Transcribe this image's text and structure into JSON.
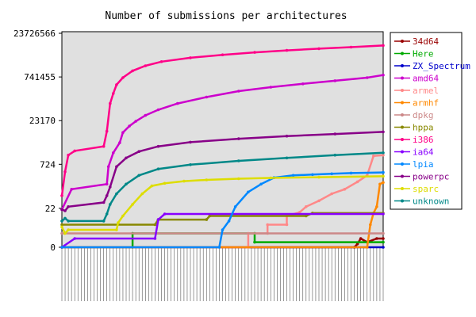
{
  "chart_data": {
    "type": "line",
    "title": "Number of submissions per architectures",
    "xlabel": "",
    "ylabel": "",
    "yscale": "log",
    "grid": false,
    "legend_position": "right",
    "y_ticks": [
      "0",
      "22",
      "724",
      "23170",
      "741455",
      "23726566"
    ],
    "x_range": [
      0,
      100
    ],
    "series": [
      {
        "name": "34d64",
        "color": "#990000",
        "x": [
          0,
          91,
          92,
          93,
          95,
          98,
          100
        ],
        "y": [
          1,
          1,
          1.3,
          2.0,
          1.5,
          2,
          2
        ]
      },
      {
        "name": "Here",
        "color": "#00aa00",
        "x": [
          0,
          22,
          22,
          60,
          60,
          100
        ],
        "y": [
          1,
          1,
          3,
          3,
          1.5,
          1.5
        ]
      },
      {
        "name": "ZX_Spectrum",
        "color": "#0000cc",
        "x": [
          0,
          100
        ],
        "y": [
          1,
          1
        ]
      },
      {
        "name": "amd64",
        "color": "#cc00cc",
        "x": [
          0,
          3,
          14,
          14.5,
          16,
          18,
          19,
          21,
          23,
          26,
          30,
          36,
          45,
          55,
          65,
          75,
          85,
          95,
          100
        ],
        "y": [
          20,
          100,
          150,
          600,
          1800,
          4000,
          9000,
          15000,
          22000,
          35000,
          55000,
          90000,
          150000,
          240000,
          330000,
          430000,
          550000,
          700000,
          860000
        ]
      },
      {
        "name": "armel",
        "color": "#ff8888",
        "x": [
          0,
          58,
          58,
          64,
          64,
          70,
          70,
          74,
          76,
          80,
          84,
          88,
          92,
          95,
          97,
          100
        ],
        "y": [
          1,
          1,
          3,
          3,
          6,
          6,
          12,
          16,
          25,
          40,
          70,
          100,
          180,
          300,
          1400,
          1500
        ]
      },
      {
        "name": "armhf",
        "color": "#ff8800",
        "x": [
          0,
          95,
          96,
          97,
          98,
          99,
          100
        ],
        "y": [
          1,
          1,
          6,
          15,
          25,
          150,
          170
        ]
      },
      {
        "name": "dpkg",
        "color": "#cc8888",
        "x": [
          0,
          100
        ],
        "y": [
          3,
          3
        ]
      },
      {
        "name": "hppa",
        "color": "#888800",
        "x": [
          0,
          29,
          30,
          45,
          46,
          76,
          78,
          100
        ],
        "y": [
          6,
          6,
          9,
          9,
          12,
          12,
          15,
          15
        ]
      },
      {
        "name": "i386",
        "color": "#ff0088",
        "x": [
          0,
          1,
          2,
          4,
          13,
          14,
          15,
          16,
          17,
          19,
          22,
          26,
          31,
          40,
          50,
          60,
          70,
          80,
          90,
          100
        ],
        "y": [
          60,
          400,
          1500,
          2100,
          3000,
          10000,
          90000,
          200000,
          400000,
          700000,
          1200000,
          1800000,
          2500000,
          3400000,
          4300000,
          5200000,
          6100000,
          7000000,
          7900000,
          9000000
        ]
      },
      {
        "name": "ia64",
        "color": "#8800ff",
        "x": [
          0,
          4,
          29,
          30,
          32,
          100
        ],
        "y": [
          1,
          2,
          2,
          9,
          14,
          14
        ]
      },
      {
        "name": "lpia",
        "color": "#0088ff",
        "x": [
          0,
          49,
          50,
          52,
          54,
          58,
          62,
          66,
          72,
          78,
          84,
          90,
          100
        ],
        "y": [
          1,
          1,
          4,
          8,
          25,
          80,
          150,
          250,
          300,
          320,
          340,
          360,
          380
        ]
      },
      {
        "name": "powerpc",
        "color": "#880088",
        "x": [
          0,
          1,
          2,
          13,
          14,
          15,
          17,
          20,
          24,
          30,
          40,
          55,
          70,
          85,
          100
        ],
        "y": [
          20,
          18,
          25,
          35,
          60,
          120,
          600,
          1200,
          2000,
          3000,
          4200,
          5500,
          6800,
          8000,
          9500
        ]
      },
      {
        "name": "sparc",
        "color": "#dddd00",
        "x": [
          0,
          1,
          2,
          17,
          17.5,
          19,
          22,
          25,
          28,
          32,
          38,
          45,
          55,
          65,
          80,
          100
        ],
        "y": [
          5,
          3,
          4,
          4,
          7,
          12,
          30,
          70,
          130,
          160,
          190,
          210,
          230,
          245,
          260,
          280
        ]
      },
      {
        "name": "unknown",
        "color": "#008888",
        "x": [
          0,
          1,
          2,
          13,
          14,
          15,
          17,
          20,
          24,
          30,
          40,
          55,
          70,
          85,
          100
        ],
        "y": [
          8,
          10,
          8,
          8,
          14,
          30,
          70,
          150,
          300,
          500,
          700,
          950,
          1200,
          1500,
          1800
        ]
      }
    ]
  }
}
